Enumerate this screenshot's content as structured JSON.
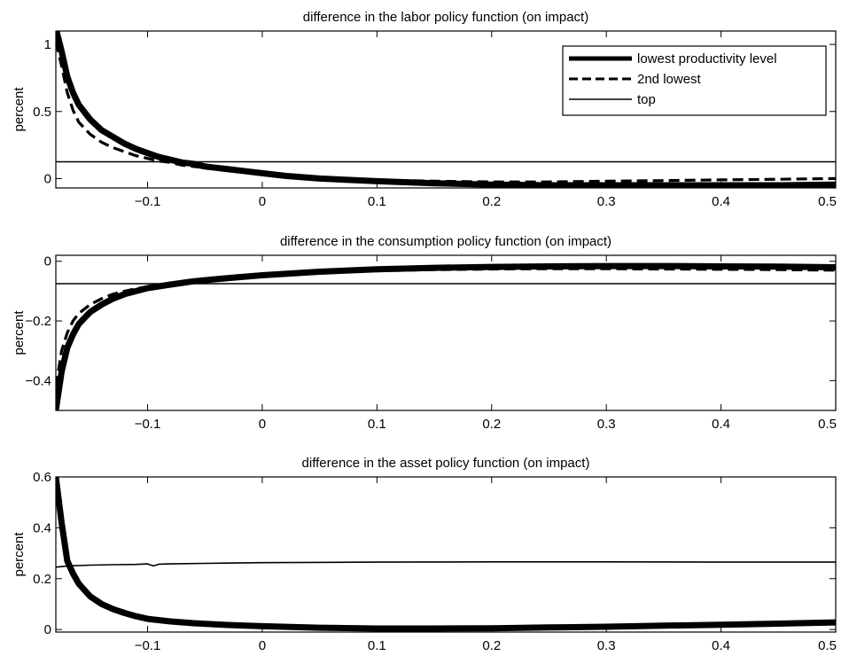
{
  "chart_data": [
    {
      "type": "line",
      "title": "difference in the labor policy function (on impact)",
      "xlabel": "",
      "ylabel": "percent",
      "xlim": [
        -0.18,
        0.5
      ],
      "ylim": [
        -0.07,
        1.1
      ],
      "xticks": [
        -0.1,
        0,
        0.1,
        0.2,
        0.3,
        0.4,
        0.5
      ],
      "xtick_labels": [
        "−0.1",
        "0",
        "0.1",
        "0.2",
        "0.3",
        "0.4",
        "0.5"
      ],
      "yticks": [
        0,
        0.5,
        1
      ],
      "ytick_labels": [
        "0",
        "0.5",
        "1"
      ],
      "grid": false,
      "legend_position": "top-right",
      "series": [
        {
          "name": "lowest productivity level",
          "style": "thick",
          "x": [
            -0.18,
            -0.175,
            -0.17,
            -0.165,
            -0.16,
            -0.15,
            -0.14,
            -0.13,
            -0.12,
            -0.11,
            -0.1,
            -0.09,
            -0.08,
            -0.07,
            -0.06,
            -0.05,
            -0.04,
            -0.02,
            0,
            0.02,
            0.05,
            0.1,
            0.15,
            0.2,
            0.25,
            0.3,
            0.35,
            0.4,
            0.45,
            0.5
          ],
          "y": [
            1.12,
            0.95,
            0.76,
            0.64,
            0.55,
            0.44,
            0.36,
            0.31,
            0.26,
            0.22,
            0.19,
            0.16,
            0.14,
            0.12,
            0.11,
            0.09,
            0.08,
            0.06,
            0.04,
            0.02,
            0.0,
            -0.02,
            -0.035,
            -0.045,
            -0.05,
            -0.05,
            -0.05,
            -0.05,
            -0.05,
            -0.045
          ]
        },
        {
          "name": "2nd lowest",
          "style": "dashed",
          "x": [
            -0.18,
            -0.175,
            -0.17,
            -0.165,
            -0.16,
            -0.15,
            -0.14,
            -0.13,
            -0.12,
            -0.11,
            -0.1,
            -0.09,
            -0.08,
            -0.07,
            -0.06,
            -0.05,
            -0.04,
            -0.02,
            0,
            0.02,
            0.05,
            0.1,
            0.15,
            0.2,
            0.25,
            0.3,
            0.35,
            0.4,
            0.45,
            0.5
          ],
          "y": [
            1.02,
            0.84,
            0.64,
            0.51,
            0.42,
            0.33,
            0.27,
            0.23,
            0.2,
            0.17,
            0.15,
            0.13,
            0.12,
            0.1,
            0.09,
            0.08,
            0.07,
            0.05,
            0.04,
            0.02,
            0.005,
            -0.01,
            -0.02,
            -0.025,
            -0.025,
            -0.02,
            -0.015,
            -0.01,
            -0.005,
            0.0
          ]
        },
        {
          "name": "top",
          "style": "thin",
          "x": [
            -0.18,
            0.5
          ],
          "y": [
            0.125,
            0.125
          ]
        }
      ]
    },
    {
      "type": "line",
      "title": "difference in the consumption policy function (on impact)",
      "xlabel": "",
      "ylabel": "percent",
      "xlim": [
        -0.18,
        0.5
      ],
      "ylim": [
        -0.5,
        0.02
      ],
      "xticks": [
        -0.1,
        0,
        0.1,
        0.2,
        0.3,
        0.4,
        0.5
      ],
      "xtick_labels": [
        "−0.1",
        "0",
        "0.1",
        "0.2",
        "0.3",
        "0.4",
        "0.5"
      ],
      "yticks": [
        -0.4,
        -0.2,
        0
      ],
      "ytick_labels": [
        "−0.4",
        "−0.2",
        "0"
      ],
      "grid": false,
      "series": [
        {
          "name": "lowest productivity level",
          "style": "thick",
          "x": [
            -0.18,
            -0.175,
            -0.17,
            -0.165,
            -0.16,
            -0.15,
            -0.14,
            -0.13,
            -0.12,
            -0.11,
            -0.1,
            -0.08,
            -0.06,
            -0.04,
            -0.02,
            0,
            0.05,
            0.1,
            0.15,
            0.2,
            0.25,
            0.3,
            0.35,
            0.4,
            0.45,
            0.5
          ],
          "y": [
            -0.5,
            -0.37,
            -0.29,
            -0.245,
            -0.21,
            -0.17,
            -0.145,
            -0.125,
            -0.11,
            -0.1,
            -0.09,
            -0.078,
            -0.067,
            -0.06,
            -0.053,
            -0.047,
            -0.035,
            -0.027,
            -0.022,
            -0.019,
            -0.017,
            -0.016,
            -0.016,
            -0.017,
            -0.018,
            -0.02
          ]
        },
        {
          "name": "2nd lowest",
          "style": "dashed",
          "x": [
            -0.18,
            -0.175,
            -0.17,
            -0.165,
            -0.16,
            -0.15,
            -0.14,
            -0.13,
            -0.12,
            -0.11,
            -0.1,
            -0.08,
            -0.06,
            -0.04,
            -0.02,
            0,
            0.05,
            0.1,
            0.15,
            0.2,
            0.25,
            0.3,
            0.35,
            0.4,
            0.45,
            0.5
          ],
          "y": [
            -0.42,
            -0.3,
            -0.24,
            -0.2,
            -0.175,
            -0.145,
            -0.125,
            -0.11,
            -0.1,
            -0.092,
            -0.085,
            -0.075,
            -0.066,
            -0.059,
            -0.053,
            -0.048,
            -0.038,
            -0.032,
            -0.028,
            -0.026,
            -0.025,
            -0.025,
            -0.026,
            -0.027,
            -0.028,
            -0.03
          ]
        },
        {
          "name": "top",
          "style": "thin",
          "x": [
            -0.18,
            0.5
          ],
          "y": [
            -0.075,
            -0.075
          ]
        }
      ]
    },
    {
      "type": "line",
      "title": "difference in the asset policy function (on impact)",
      "xlabel": "",
      "ylabel": "percent",
      "xlim": [
        -0.18,
        0.5
      ],
      "ylim": [
        -0.01,
        0.6
      ],
      "xticks": [
        -0.1,
        0,
        0.1,
        0.2,
        0.3,
        0.4,
        0.5
      ],
      "xtick_labels": [
        "−0.1",
        "0",
        "0.1",
        "0.2",
        "0.3",
        "0.4",
        "0.5"
      ],
      "yticks": [
        0,
        0.2,
        0.4,
        0.6
      ],
      "ytick_labels": [
        "0",
        "0.2",
        "0.4",
        "0.6"
      ],
      "grid": false,
      "series": [
        {
          "name": "lowest productivity level",
          "style": "thick",
          "x": [
            -0.18,
            -0.175,
            -0.17,
            -0.165,
            -0.16,
            -0.15,
            -0.14,
            -0.13,
            -0.12,
            -0.11,
            -0.1,
            -0.08,
            -0.06,
            -0.04,
            -0.02,
            0,
            0.05,
            0.1,
            0.15,
            0.2,
            0.25,
            0.3,
            0.35,
            0.4,
            0.45,
            0.5
          ],
          "y": [
            0.6,
            0.42,
            0.27,
            0.22,
            0.18,
            0.13,
            0.1,
            0.08,
            0.065,
            0.052,
            0.042,
            0.032,
            0.025,
            0.02,
            0.016,
            0.013,
            0.007,
            0.004,
            0.004,
            0.005,
            0.008,
            0.011,
            0.015,
            0.019,
            0.023,
            0.028
          ]
        },
        {
          "name": "2nd lowest",
          "style": "dashed",
          "x": [
            -0.18,
            -0.175,
            -0.17,
            -0.165,
            -0.16,
            -0.15,
            -0.14,
            -0.13,
            -0.12,
            -0.11,
            -0.1,
            -0.08,
            -0.06,
            -0.04,
            -0.02,
            0,
            0.05,
            0.1,
            0.15,
            0.2,
            0.25,
            0.3,
            0.35,
            0.4,
            0.45,
            0.5
          ],
          "y": [
            0.58,
            0.4,
            0.26,
            0.21,
            0.17,
            0.125,
            0.097,
            0.077,
            0.062,
            0.05,
            0.04,
            0.031,
            0.024,
            0.019,
            0.015,
            0.012,
            0.007,
            0.004,
            0.004,
            0.005,
            0.008,
            0.011,
            0.014,
            0.018,
            0.022,
            0.026
          ]
        },
        {
          "name": "top",
          "style": "thin",
          "x": [
            -0.18,
            -0.17,
            -0.15,
            -0.13,
            -0.11,
            -0.1,
            -0.095,
            -0.09,
            -0.08,
            -0.05,
            0,
            0.1,
            0.2,
            0.3,
            0.4,
            0.5
          ],
          "y": [
            0.245,
            0.25,
            0.253,
            0.255,
            0.256,
            0.258,
            0.25,
            0.257,
            0.258,
            0.26,
            0.263,
            0.265,
            0.266,
            0.266,
            0.265,
            0.265
          ]
        }
      ]
    }
  ]
}
